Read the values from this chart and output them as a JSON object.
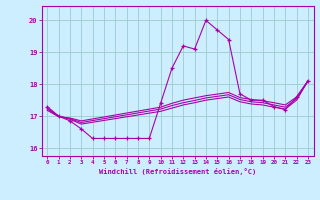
{
  "xlabel": "Windchill (Refroidissement éolien,°C)",
  "bg_color": "#cceeff",
  "line_color": "#aa00aa",
  "grid_color": "#99cccc",
  "hours": [
    0,
    1,
    2,
    3,
    4,
    5,
    6,
    7,
    8,
    9,
    10,
    11,
    12,
    13,
    14,
    15,
    16,
    17,
    18,
    19,
    20,
    21,
    22,
    23
  ],
  "temps": [
    17.3,
    17.0,
    16.85,
    16.6,
    16.3,
    16.3,
    16.3,
    16.3,
    16.3,
    16.3,
    17.4,
    18.5,
    19.2,
    19.1,
    20.0,
    19.7,
    19.4,
    17.7,
    17.5,
    17.5,
    17.3,
    17.2,
    17.6,
    18.1
  ],
  "ribbon_lines": [
    {
      "hours": [
        0,
        1,
        2,
        3,
        10,
        11,
        12,
        13,
        14,
        15,
        16,
        17,
        18,
        19,
        20,
        21,
        22,
        23
      ],
      "temps": [
        17.25,
        17.0,
        16.9,
        16.75,
        17.15,
        17.25,
        17.35,
        17.42,
        17.5,
        17.55,
        17.6,
        17.45,
        17.38,
        17.35,
        17.28,
        17.22,
        17.5,
        18.1
      ]
    },
    {
      "hours": [
        0,
        1,
        2,
        3,
        10,
        11,
        12,
        13,
        14,
        15,
        16,
        17,
        18,
        19,
        20,
        21,
        22,
        23
      ],
      "temps": [
        17.22,
        17.0,
        16.92,
        16.8,
        17.22,
        17.33,
        17.42,
        17.49,
        17.57,
        17.62,
        17.67,
        17.52,
        17.45,
        17.42,
        17.35,
        17.28,
        17.55,
        18.1
      ]
    },
    {
      "hours": [
        0,
        1,
        2,
        3,
        10,
        11,
        12,
        13,
        14,
        15,
        16,
        17,
        18,
        19,
        20,
        21,
        22,
        23
      ],
      "temps": [
        17.18,
        16.98,
        16.94,
        16.85,
        17.28,
        17.4,
        17.5,
        17.57,
        17.64,
        17.69,
        17.74,
        17.58,
        17.52,
        17.48,
        17.42,
        17.35,
        17.6,
        18.1
      ]
    }
  ],
  "ylim": [
    15.75,
    20.45
  ],
  "xlim": [
    -0.5,
    23.5
  ],
  "yticks": [
    16,
    17,
    18,
    19,
    20
  ],
  "xticks": [
    0,
    1,
    2,
    3,
    4,
    5,
    6,
    7,
    8,
    9,
    10,
    11,
    12,
    13,
    14,
    15,
    16,
    17,
    18,
    19,
    20,
    21,
    22,
    23
  ]
}
